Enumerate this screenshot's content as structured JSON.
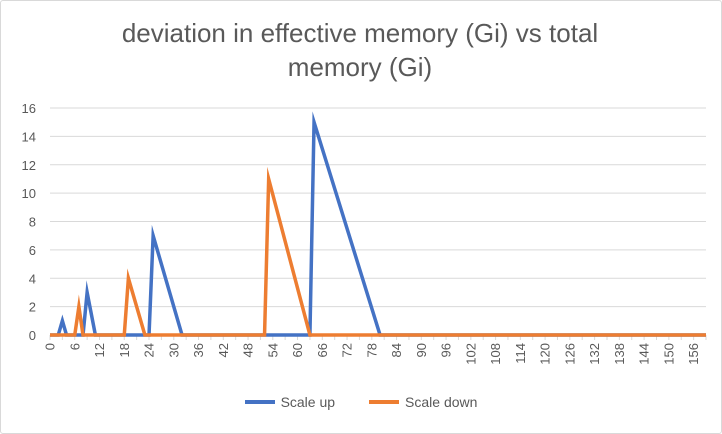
{
  "chart_data": {
    "type": "line",
    "title_lines": [
      "deviation in effective memory (Gi) vs total",
      "memory (Gi)"
    ],
    "xlabel": "",
    "ylabel": "",
    "xlim": [
      0,
      159
    ],
    "ylim": [
      0,
      16
    ],
    "y_ticks": [
      0,
      2,
      4,
      6,
      8,
      10,
      12,
      14,
      16
    ],
    "x_ticks": [
      0,
      3,
      6,
      9,
      12,
      15,
      18,
      21,
      24,
      27,
      30,
      33,
      36,
      39,
      42,
      45,
      48,
      51,
      54,
      57,
      60,
      63,
      66,
      69,
      72,
      75,
      78,
      81,
      84,
      87,
      90,
      93,
      96,
      99,
      102,
      105,
      108,
      111,
      114,
      117,
      120,
      123,
      126,
      129,
      132,
      135,
      138,
      141,
      144,
      147,
      150,
      153,
      156,
      159
    ],
    "x_tick_labels": [
      "0",
      "6",
      "12",
      "18",
      "24",
      "30",
      "36",
      "42",
      "48",
      "54",
      "60",
      "66",
      "72",
      "78",
      "84",
      "90",
      "96",
      "102",
      "108",
      "114",
      "120",
      "126",
      "132",
      "138",
      "144",
      "150",
      "156"
    ],
    "grid": "horizontal",
    "legend_position": "bottom",
    "series": [
      {
        "name": "Scale up",
        "color": "#4472c4",
        "points": [
          [
            0,
            0
          ],
          [
            2,
            0
          ],
          [
            3,
            1
          ],
          [
            4,
            0
          ],
          [
            8,
            0
          ],
          [
            9,
            3
          ],
          [
            11,
            0
          ],
          [
            24,
            0
          ],
          [
            25,
            7
          ],
          [
            28,
            4
          ],
          [
            32,
            0
          ],
          [
            63,
            0
          ],
          [
            64,
            15
          ],
          [
            80,
            0
          ],
          [
            159,
            0
          ]
        ]
      },
      {
        "name": "Scale down",
        "color": "#ed7d31",
        "points": [
          [
            0,
            0
          ],
          [
            6,
            0
          ],
          [
            7,
            2
          ],
          [
            8,
            0
          ],
          [
            18,
            0
          ],
          [
            19,
            4
          ],
          [
            23,
            0
          ],
          [
            52,
            0
          ],
          [
            53,
            11
          ],
          [
            63,
            0
          ],
          [
            159,
            0
          ]
        ]
      }
    ]
  }
}
